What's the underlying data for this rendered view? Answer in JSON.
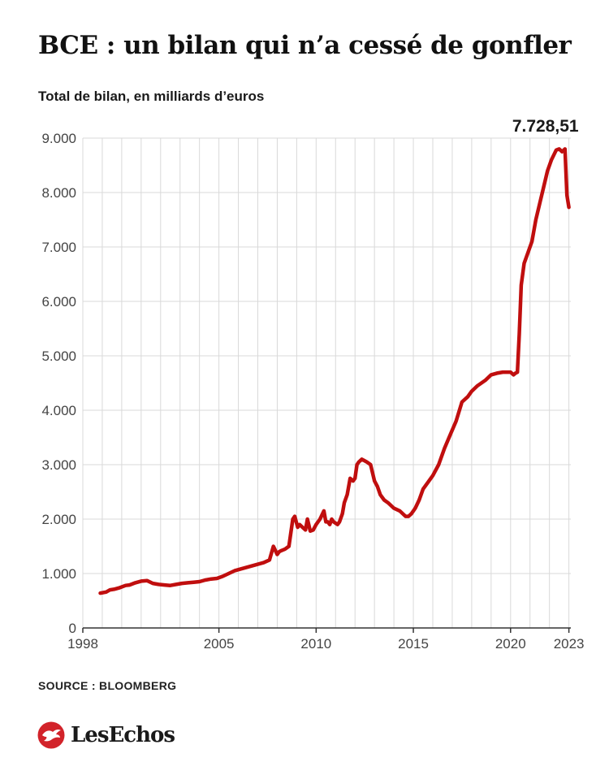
{
  "header": {
    "title": "BCE : un bilan qui n’a cessé de gonfler",
    "subtitle": "Total de bilan, en milliards d’euros"
  },
  "footer": {
    "source": "SOURCE : BLOOMBERG",
    "logo_text": "LesEchos",
    "logo_icon": "les-echos-bird-logo-icon"
  },
  "colors": {
    "line": "#c00e0e",
    "grid": "#d9d9d9",
    "axis": "#333333",
    "logo_red": "#d2232a"
  },
  "chart_data": {
    "type": "line",
    "title": "BCE : un bilan qui n’a cessé de gonfler",
    "subtitle": "Total de bilan, en milliards d’euros",
    "xlabel": "",
    "ylabel": "",
    "xlim": [
      1998,
      2023.1
    ],
    "ylim": [
      0,
      9000
    ],
    "x_ticks": [
      1998,
      2005,
      2010,
      2015,
      2020,
      2023
    ],
    "y_ticks": [
      0,
      1000,
      2000,
      3000,
      4000,
      5000,
      6000,
      7000,
      8000,
      9000
    ],
    "y_tick_labels": [
      "0",
      "1.000",
      "2.000",
      "3.000",
      "4.000",
      "5.000",
      "6.000",
      "7.000",
      "8.000",
      "9.000"
    ],
    "grid": true,
    "annotation": {
      "x": 2023.0,
      "y": 7728.51,
      "text": "7.728,51"
    },
    "series": [
      {
        "x": [
          1998.9,
          1999.2,
          1999.4,
          1999.6,
          1999.9,
          2000.2,
          2000.4,
          2000.7,
          2001.0,
          2001.3,
          2001.6,
          2001.9,
          2002.2,
          2002.5,
          2002.8,
          2003.1,
          2003.4,
          2003.7,
          2004.0,
          2004.3,
          2004.6,
          2004.9,
          2005.2,
          2005.5,
          2005.8,
          2006.1,
          2006.4,
          2006.7,
          2007.0,
          2007.3,
          2007.6,
          2007.8,
          2008.0,
          2008.1,
          2008.2,
          2008.4,
          2008.6,
          2008.8,
          2008.9,
          2009.05,
          2009.15,
          2009.3,
          2009.45,
          2009.55,
          2009.7,
          2009.85,
          2010.0,
          2010.2,
          2010.4,
          2010.5,
          2010.6,
          2010.7,
          2010.8,
          2010.9,
          2011.1,
          2011.2,
          2011.35,
          2011.45,
          2011.6,
          2011.75,
          2011.9,
          2012.0,
          2012.1,
          2012.2,
          2012.35,
          2012.45,
          2012.6,
          2012.8,
          2013.0,
          2013.15,
          2013.3,
          2013.5,
          2013.7,
          2014.0,
          2014.3,
          2014.6,
          2014.75,
          2014.9,
          2015.1,
          2015.3,
          2015.5,
          2015.7,
          2016.0,
          2016.3,
          2016.6,
          2016.9,
          2017.2,
          2017.5,
          2017.8,
          2018.0,
          2018.3,
          2018.7,
          2019.0,
          2019.3,
          2019.6,
          2019.8,
          2020.0,
          2020.15,
          2020.25,
          2020.35,
          2020.45,
          2020.55,
          2020.7,
          2020.9,
          2021.1,
          2021.3,
          2021.5,
          2021.7,
          2021.9,
          2022.1,
          2022.35,
          2022.5,
          2022.65,
          2022.8,
          2022.9,
          2023.0
        ],
        "values": [
          640,
          660,
          700,
          710,
          740,
          780,
          790,
          830,
          860,
          870,
          820,
          800,
          790,
          780,
          800,
          820,
          830,
          840,
          850,
          880,
          900,
          910,
          950,
          1000,
          1050,
          1080,
          1110,
          1140,
          1170,
          1200,
          1250,
          1500,
          1350,
          1400,
          1420,
          1450,
          1500,
          2000,
          2050,
          1850,
          1900,
          1850,
          1800,
          2000,
          1780,
          1800,
          1900,
          2000,
          2150,
          1950,
          1950,
          1900,
          2000,
          1950,
          1900,
          1950,
          2100,
          2300,
          2450,
          2750,
          2700,
          2750,
          3000,
          3050,
          3100,
          3080,
          3050,
          3000,
          2700,
          2600,
          2450,
          2350,
          2300,
          2200,
          2150,
          2050,
          2050,
          2100,
          2200,
          2350,
          2550,
          2650,
          2800,
          3000,
          3300,
          3550,
          3800,
          4150,
          4250,
          4350,
          4450,
          4550,
          4650,
          4680,
          4700,
          4700,
          4700,
          4650,
          4680,
          4700,
          5400,
          6300,
          6700,
          6900,
          7100,
          7500,
          7800,
          8100,
          8400,
          8600,
          8780,
          8800,
          8750,
          8800,
          7950,
          7728.51
        ]
      }
    ]
  }
}
